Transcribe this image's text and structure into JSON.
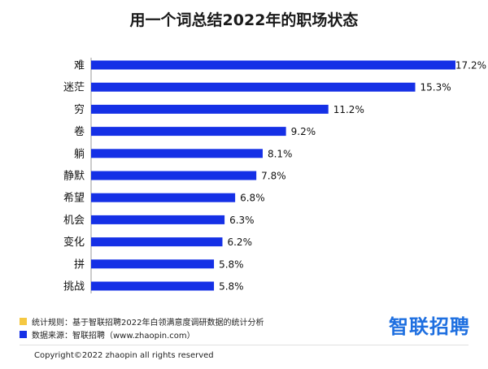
{
  "chart_data": {
    "type": "bar",
    "orientation": "horizontal",
    "title": "用一个词总结2022年的职场状态",
    "categories": [
      "难",
      "迷茫",
      "穷",
      "卷",
      "躺",
      "静默",
      "希望",
      "机会",
      "变化",
      "拼",
      "挑战"
    ],
    "values": [
      17.2,
      15.3,
      11.2,
      9.2,
      8.1,
      7.8,
      6.8,
      6.3,
      6.2,
      5.8,
      5.8
    ],
    "value_labels": [
      "17.2%",
      "15.3%",
      "11.2%",
      "9.2%",
      "8.1%",
      "7.8%",
      "6.8%",
      "6.3%",
      "6.2%",
      "5.8%",
      "5.8%"
    ],
    "xlim": [
      0,
      17.2
    ],
    "grid": false,
    "bar_color": "#1530e6"
  },
  "notes": {
    "rule": "统计规则：基于智联招聘2022年白领满意度调研数据的统计分析",
    "source": "数据来源：智联招聘（www.zhaopin.com）",
    "rule_color": "#f5c842",
    "source_color": "#1530e6"
  },
  "brand": {
    "logo_text": "智联招聘",
    "logo_color": "#1e6fe0"
  },
  "footer": {
    "copyright": "Copyright©2022 zhaopin all rights reserved"
  }
}
